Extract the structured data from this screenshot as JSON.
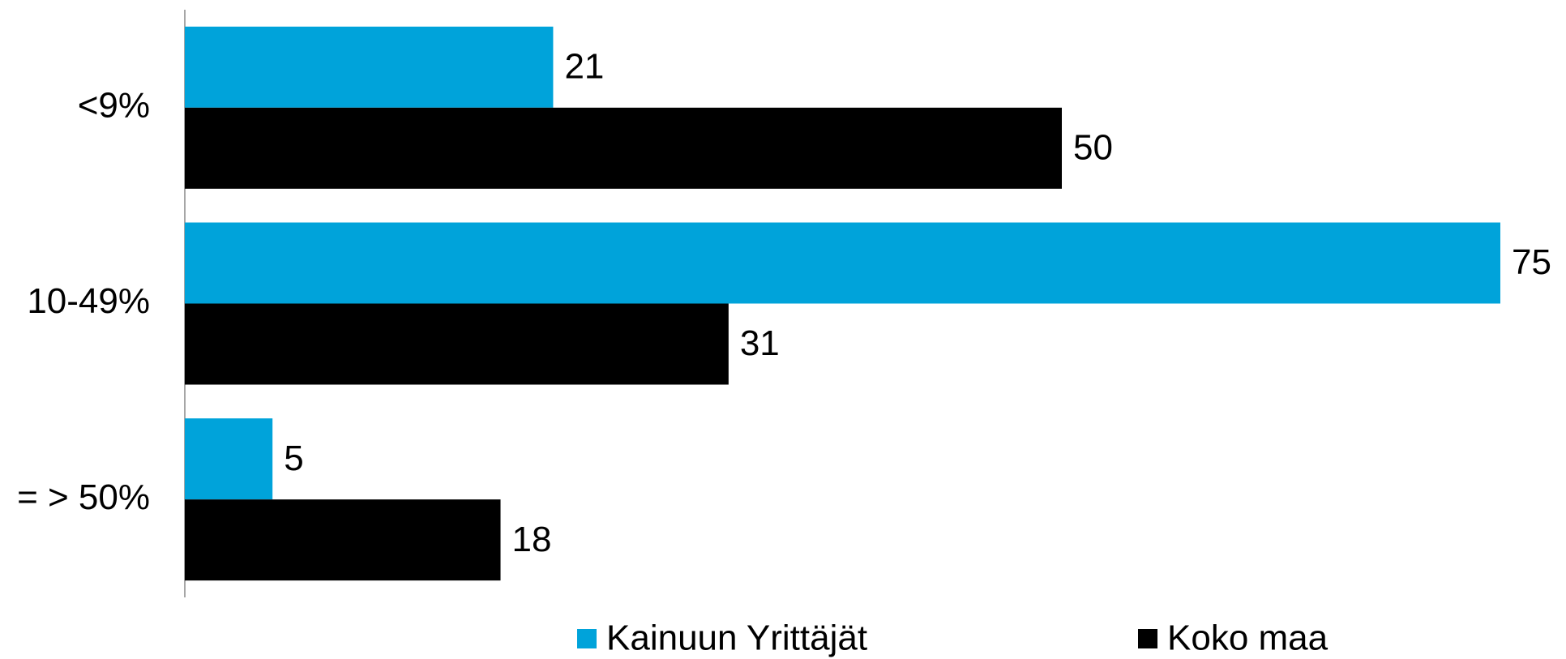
{
  "chart_data": {
    "type": "bar",
    "orientation": "horizontal",
    "categories": [
      "<9%",
      "10-49%",
      "= > 50%"
    ],
    "series": [
      {
        "name": "Kainuun Yrittäjät",
        "color": "#00a3da",
        "values": [
          21,
          75,
          5
        ]
      },
      {
        "name": "Koko maa",
        "color": "#000000",
        "values": [
          50,
          31,
          18
        ]
      }
    ],
    "legend": "bottom"
  }
}
